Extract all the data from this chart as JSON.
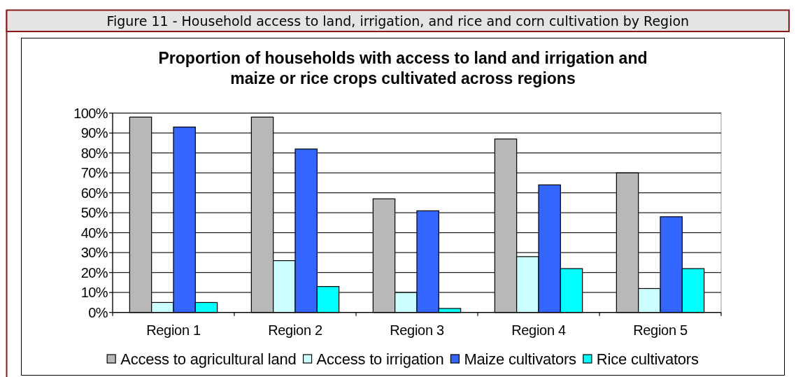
{
  "chart_data": {
    "type": "bar",
    "title": "Proportion of households with access to land and irrigation and\nmaize or rice crops cultivated across regions",
    "annotations": [
      "Figure 11 - Household access to land, irrigation, and rice and corn cultivation by Region"
    ],
    "categories": [
      "Region 1",
      "Region 2",
      "Region 3",
      "Region 4",
      "Region 5"
    ],
    "series": [
      {
        "name": "Access to agricultural land",
        "color": "#b8b8b8",
        "values": [
          98,
          98,
          57,
          87,
          70
        ]
      },
      {
        "name": "Access to irrigation",
        "color": "#ccffff",
        "values": [
          5,
          26,
          10,
          28,
          12
        ]
      },
      {
        "name": "Maize cultivators",
        "color": "#3366ff",
        "values": [
          93,
          82,
          51,
          64,
          48
        ]
      },
      {
        "name": "Rice cultivators",
        "color": "#00ffff",
        "values": [
          5,
          13,
          2,
          22,
          22
        ]
      }
    ],
    "ylim": [
      0,
      100
    ],
    "yticks": [
      {
        "value": 0,
        "label": "0%"
      },
      {
        "value": 10,
        "label": "10%"
      },
      {
        "value": 20,
        "label": "20%"
      },
      {
        "value": 30,
        "label": "30%"
      },
      {
        "value": 40,
        "label": "40%"
      },
      {
        "value": 50,
        "label": "50%"
      },
      {
        "value": 60,
        "label": "60%"
      },
      {
        "value": 70,
        "label": "70%"
      },
      {
        "value": 80,
        "label": "80%"
      },
      {
        "value": 90,
        "label": "90%"
      },
      {
        "value": 100,
        "label": "100%"
      }
    ],
    "grid": "y",
    "legend": "bottom"
  }
}
